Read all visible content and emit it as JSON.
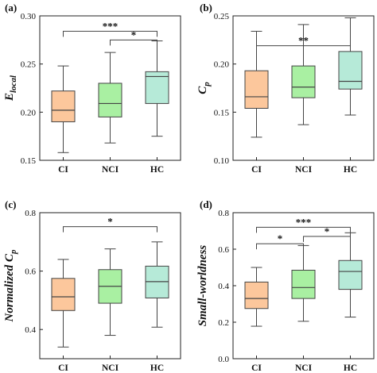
{
  "colors": {
    "CI": "#fcc79c",
    "NCI": "#a9f0a2",
    "HC": "#b6ead8",
    "stroke": "#444444"
  },
  "chart_data": [
    {
      "panel": "(a)",
      "type": "box",
      "ylabel": "E_local",
      "ylabel_main": "E",
      "ylabel_sub": "local",
      "ylim": [
        0.15,
        0.3
      ],
      "yticks": [
        0.15,
        0.2,
        0.25,
        0.3
      ],
      "ytick_labels": [
        "0.15",
        "0.20",
        "0.25",
        "0.30"
      ],
      "categories": [
        "CI",
        "NCI",
        "HC"
      ],
      "boxes": [
        {
          "min": 0.158,
          "q1": 0.19,
          "median": 0.202,
          "q3": 0.222,
          "max": 0.248
        },
        {
          "min": 0.168,
          "q1": 0.195,
          "median": 0.209,
          "q3": 0.23,
          "max": 0.262
        },
        {
          "min": 0.175,
          "q1": 0.209,
          "median": 0.237,
          "q3": 0.242,
          "max": 0.274
        }
      ],
      "significance": [
        {
          "from": 0,
          "to": 2,
          "label": "***",
          "y": 0.284
        },
        {
          "from": 1,
          "to": 2,
          "label": "*",
          "y": 0.275
        }
      ]
    },
    {
      "panel": "(b)",
      "type": "box",
      "ylabel": "C_p",
      "ylabel_main": "C",
      "ylabel_sub": "p",
      "ylim": [
        0.1,
        0.25
      ],
      "yticks": [
        0.1,
        0.15,
        0.2,
        0.25
      ],
      "ytick_labels": [
        "0.10",
        "0.15",
        "0.20",
        "0.25"
      ],
      "categories": [
        "CI",
        "NCI",
        "HC"
      ],
      "boxes": [
        {
          "min": 0.124,
          "q1": 0.154,
          "median": 0.166,
          "q3": 0.193,
          "max": 0.234
        },
        {
          "min": 0.137,
          "q1": 0.165,
          "median": 0.176,
          "q3": 0.198,
          "max": 0.241
        },
        {
          "min": 0.147,
          "q1": 0.174,
          "median": 0.182,
          "q3": 0.213,
          "max": 0.248
        }
      ],
      "significance": [
        {
          "from": 0,
          "to": 2,
          "label": "**",
          "y": 0.219
        }
      ]
    },
    {
      "panel": "(c)",
      "type": "box",
      "ylabel": "Normalized C_p",
      "ylabel_main": "Normalized C",
      "ylabel_sub": "p",
      "ylim": [
        0.3,
        0.8
      ],
      "yticks": [
        0.4,
        0.6,
        0.8
      ],
      "ytick_labels": [
        "0.4",
        "0.6",
        "0.8"
      ],
      "categories": [
        "CI",
        "NCI",
        "HC"
      ],
      "boxes": [
        {
          "min": 0.34,
          "q1": 0.465,
          "median": 0.512,
          "q3": 0.575,
          "max": 0.64
        },
        {
          "min": 0.38,
          "q1": 0.49,
          "median": 0.548,
          "q3": 0.605,
          "max": 0.676
        },
        {
          "min": 0.408,
          "q1": 0.508,
          "median": 0.564,
          "q3": 0.617,
          "max": 0.7
        }
      ],
      "significance": [
        {
          "from": 0,
          "to": 2,
          "label": "*",
          "y": 0.752
        }
      ]
    },
    {
      "panel": "(d)",
      "type": "box",
      "ylabel": "Small-worldness",
      "ylabel_main": "Small-worldness",
      "ylabel_sub": "",
      "ylim": [
        0.0,
        0.8
      ],
      "yticks": [
        0.0,
        0.2,
        0.4,
        0.6,
        0.8
      ],
      "ytick_labels": [
        "0.0",
        "0.2",
        "0.4",
        "0.6",
        "0.8"
      ],
      "categories": [
        "CI",
        "NCI",
        "HC"
      ],
      "boxes": [
        {
          "min": 0.178,
          "q1": 0.275,
          "median": 0.33,
          "q3": 0.42,
          "max": 0.5
        },
        {
          "min": 0.205,
          "q1": 0.33,
          "median": 0.39,
          "q3": 0.485,
          "max": 0.62
        },
        {
          "min": 0.228,
          "q1": 0.38,
          "median": 0.478,
          "q3": 0.538,
          "max": 0.69
        }
      ],
      "significance": [
        {
          "from": 0,
          "to": 2,
          "label": "***",
          "y": 0.72
        },
        {
          "from": 0,
          "to": 1,
          "label": "*",
          "y": 0.63
        },
        {
          "from": 1,
          "to": 2,
          "label": "*",
          "y": 0.67
        }
      ]
    }
  ]
}
